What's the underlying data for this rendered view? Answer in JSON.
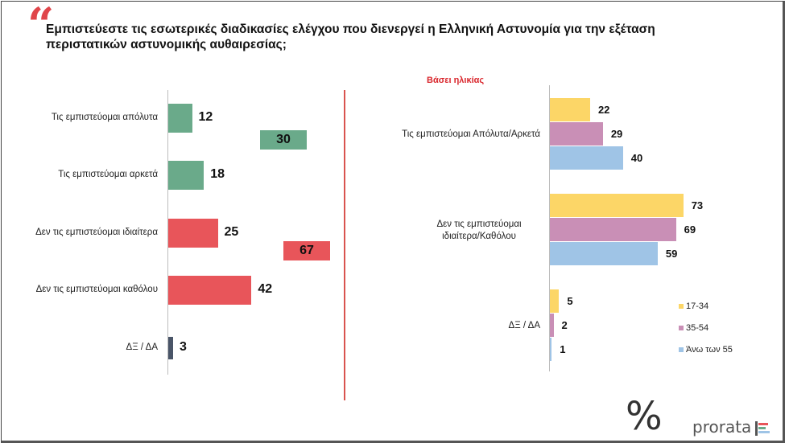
{
  "header": {
    "quote_mark": "“",
    "title": "Εμπιστεύεστε τις εσωτερικές διαδικασίες ελέγχου που διενεργεί η Ελληνική Αστυνομία για την εξέταση περιστατικών αστυνομικής αυθαιρεσίας;"
  },
  "chart_data": [
    {
      "type": "bar",
      "orientation": "horizontal",
      "title": "",
      "categories": [
        "Τις εμπιστεύομαι απόλυτα",
        "Τις εμπιστεύομαι αρκετά",
        "Δεν τις εμπιστεύομαι ιδιαίτερα",
        "Δεν τις εμπιστεύομαι καθόλου",
        "ΔΞ / ΔΑ"
      ],
      "values": [
        12,
        18,
        25,
        42,
        3
      ],
      "colors": [
        "#6aaa8a",
        "#6aaa8a",
        "#e8555a",
        "#e8555a",
        "#4a5568"
      ],
      "totals": [
        {
          "value": 30,
          "color": "#6aaa8a"
        },
        {
          "value": 67,
          "color": "#e8555a"
        }
      ],
      "xlim": [
        0,
        100
      ]
    },
    {
      "type": "bar",
      "orientation": "horizontal",
      "title": "Βάσει ηλικίας",
      "categories": [
        "Τις εμπιστεύομαι Απόλυτα/Αρκετά",
        "Δεν τις εμπιστεύομαι ιδιαίτερα/Καθόλου",
        "ΔΞ / ΔΑ"
      ],
      "series": [
        {
          "name": "17-34",
          "color": "#fcd667",
          "values": [
            22,
            73,
            5
          ]
        },
        {
          "name": "35-54",
          "color": "#c98fb6",
          "values": [
            29,
            69,
            2
          ]
        },
        {
          "name": "Άνω των 55",
          "color": "#9fc4e6",
          "values": [
            40,
            59,
            1
          ]
        }
      ],
      "xlim": [
        0,
        100
      ],
      "legend": "bottom-right"
    }
  ],
  "footer": {
    "logo_symbol": "%",
    "brand": "prorata"
  }
}
